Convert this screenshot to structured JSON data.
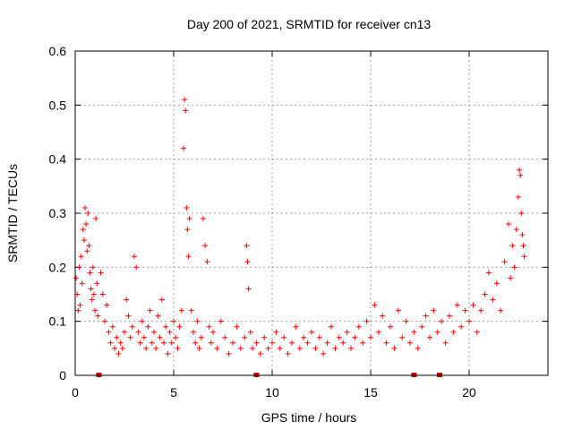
{
  "chart_data": {
    "type": "scatter",
    "title": "Day 200 of 2021, SRMTID for receiver cn13",
    "xlabel": "GPS time / hours",
    "ylabel": "SRMTID / TECUs",
    "xlim": [
      0,
      24
    ],
    "ylim": [
      0,
      0.6
    ],
    "x_ticks": [
      0,
      5,
      10,
      15,
      20
    ],
    "x_tick_labels": [
      "0",
      "5",
      "10",
      "15",
      "20"
    ],
    "y_ticks": [
      0,
      0.1,
      0.2,
      0.3,
      0.4,
      0.5,
      0.6
    ],
    "y_tick_labels": [
      "0",
      "0.1",
      "0.2",
      "0.3",
      "0.4",
      "0.5",
      "0.6"
    ],
    "grid": true,
    "marker": "plus",
    "color": "#ff0000",
    "baseline_marks_x": [
      1.2,
      9.2,
      17.2,
      18.5
    ],
    "series": [
      {
        "name": "SRMTID",
        "points": [
          [
            0.05,
            0.18
          ],
          [
            0.1,
            0.15
          ],
          [
            0.15,
            0.12
          ],
          [
            0.2,
            0.2
          ],
          [
            0.25,
            0.13
          ],
          [
            0.3,
            0.22
          ],
          [
            0.35,
            0.17
          ],
          [
            0.4,
            0.27
          ],
          [
            0.45,
            0.25
          ],
          [
            0.5,
            0.31
          ],
          [
            0.55,
            0.28
          ],
          [
            0.6,
            0.23
          ],
          [
            0.65,
            0.3
          ],
          [
            0.7,
            0.24
          ],
          [
            0.75,
            0.19
          ],
          [
            0.8,
            0.16
          ],
          [
            0.85,
            0.14
          ],
          [
            0.9,
            0.2
          ],
          [
            0.95,
            0.15
          ],
          [
            1.0,
            0.12
          ],
          [
            1.05,
            0.29
          ],
          [
            1.1,
            0.17
          ],
          [
            1.15,
            0.11
          ],
          [
            1.3,
            0.19
          ],
          [
            1.4,
            0.15
          ],
          [
            1.5,
            0.1
          ],
          [
            1.6,
            0.13
          ],
          [
            1.7,
            0.08
          ],
          [
            1.8,
            0.06
          ],
          [
            1.9,
            0.09
          ],
          [
            2.0,
            0.05
          ],
          [
            2.1,
            0.07
          ],
          [
            2.2,
            0.04
          ],
          [
            2.3,
            0.06
          ],
          [
            2.4,
            0.05
          ],
          [
            2.5,
            0.08
          ],
          [
            2.6,
            0.14
          ],
          [
            2.7,
            0.11
          ],
          [
            2.8,
            0.07
          ],
          [
            2.9,
            0.09
          ],
          [
            3.0,
            0.22
          ],
          [
            3.1,
            0.2
          ],
          [
            3.2,
            0.08
          ],
          [
            3.3,
            0.06
          ],
          [
            3.4,
            0.1
          ],
          [
            3.5,
            0.07
          ],
          [
            3.6,
            0.05
          ],
          [
            3.7,
            0.09
          ],
          [
            3.8,
            0.12
          ],
          [
            3.9,
            0.06
          ],
          [
            4.0,
            0.08
          ],
          [
            4.1,
            0.05
          ],
          [
            4.2,
            0.11
          ],
          [
            4.3,
            0.07
          ],
          [
            4.4,
            0.14
          ],
          [
            4.5,
            0.06
          ],
          [
            4.6,
            0.09
          ],
          [
            4.7,
            0.04
          ],
          [
            4.8,
            0.08
          ],
          [
            4.9,
            0.06
          ],
          [
            5.0,
            0.1
          ],
          [
            5.1,
            0.07
          ],
          [
            5.2,
            0.05
          ],
          [
            5.3,
            0.09
          ],
          [
            5.4,
            0.12
          ],
          [
            5.5,
            0.42
          ],
          [
            5.55,
            0.51
          ],
          [
            5.6,
            0.49
          ],
          [
            5.65,
            0.31
          ],
          [
            5.7,
            0.27
          ],
          [
            5.75,
            0.22
          ],
          [
            5.8,
            0.29
          ],
          [
            5.9,
            0.12
          ],
          [
            6.0,
            0.08
          ],
          [
            6.1,
            0.06
          ],
          [
            6.2,
            0.1
          ],
          [
            6.3,
            0.05
          ],
          [
            6.4,
            0.07
          ],
          [
            6.5,
            0.29
          ],
          [
            6.6,
            0.24
          ],
          [
            6.7,
            0.21
          ],
          [
            6.8,
            0.09
          ],
          [
            6.9,
            0.06
          ],
          [
            7.0,
            0.08
          ],
          [
            7.2,
            0.05
          ],
          [
            7.4,
            0.1
          ],
          [
            7.6,
            0.07
          ],
          [
            7.8,
            0.04
          ],
          [
            8.0,
            0.06
          ],
          [
            8.2,
            0.09
          ],
          [
            8.4,
            0.05
          ],
          [
            8.6,
            0.07
          ],
          [
            8.7,
            0.24
          ],
          [
            8.75,
            0.21
          ],
          [
            8.8,
            0.16
          ],
          [
            8.9,
            0.08
          ],
          [
            9.0,
            0.05
          ],
          [
            9.2,
            0.06
          ],
          [
            9.4,
            0.04
          ],
          [
            9.6,
            0.07
          ],
          [
            9.8,
            0.05
          ],
          [
            10.0,
            0.06
          ],
          [
            10.2,
            0.08
          ],
          [
            10.4,
            0.05
          ],
          [
            10.6,
            0.07
          ],
          [
            10.8,
            0.04
          ],
          [
            11.0,
            0.06
          ],
          [
            11.2,
            0.09
          ],
          [
            11.4,
            0.05
          ],
          [
            11.6,
            0.07
          ],
          [
            11.8,
            0.06
          ],
          [
            12.0,
            0.08
          ],
          [
            12.2,
            0.05
          ],
          [
            12.4,
            0.07
          ],
          [
            12.6,
            0.04
          ],
          [
            12.8,
            0.06
          ],
          [
            13.0,
            0.09
          ],
          [
            13.2,
            0.05
          ],
          [
            13.4,
            0.07
          ],
          [
            13.6,
            0.06
          ],
          [
            13.8,
            0.08
          ],
          [
            14.0,
            0.05
          ],
          [
            14.2,
            0.07
          ],
          [
            14.4,
            0.09
          ],
          [
            14.6,
            0.06
          ],
          [
            14.8,
            0.1
          ],
          [
            15.0,
            0.07
          ],
          [
            15.2,
            0.13
          ],
          [
            15.4,
            0.08
          ],
          [
            15.6,
            0.11
          ],
          [
            15.8,
            0.06
          ],
          [
            16.0,
            0.09
          ],
          [
            16.2,
            0.05
          ],
          [
            16.4,
            0.12
          ],
          [
            16.6,
            0.07
          ],
          [
            16.8,
            0.1
          ],
          [
            17.0,
            0.06
          ],
          [
            17.2,
            0.08
          ],
          [
            17.4,
            0.05
          ],
          [
            17.6,
            0.09
          ],
          [
            17.8,
            0.11
          ],
          [
            18.0,
            0.07
          ],
          [
            18.2,
            0.12
          ],
          [
            18.4,
            0.08
          ],
          [
            18.6,
            0.1
          ],
          [
            18.8,
            0.06
          ],
          [
            19.0,
            0.11
          ],
          [
            19.2,
            0.08
          ],
          [
            19.4,
            0.13
          ],
          [
            19.6,
            0.09
          ],
          [
            19.8,
            0.12
          ],
          [
            20.0,
            0.1
          ],
          [
            20.2,
            0.13
          ],
          [
            20.4,
            0.08
          ],
          [
            20.6,
            0.12
          ],
          [
            20.8,
            0.15
          ],
          [
            21.0,
            0.19
          ],
          [
            21.2,
            0.14
          ],
          [
            21.4,
            0.17
          ],
          [
            21.6,
            0.12
          ],
          [
            21.8,
            0.21
          ],
          [
            22.0,
            0.28
          ],
          [
            22.1,
            0.18
          ],
          [
            22.2,
            0.24
          ],
          [
            22.3,
            0.2
          ],
          [
            22.4,
            0.27
          ],
          [
            22.5,
            0.33
          ],
          [
            22.55,
            0.38
          ],
          [
            22.6,
            0.37
          ],
          [
            22.65,
            0.3
          ],
          [
            22.7,
            0.26
          ],
          [
            22.75,
            0.24
          ],
          [
            22.8,
            0.22
          ]
        ]
      }
    ]
  }
}
